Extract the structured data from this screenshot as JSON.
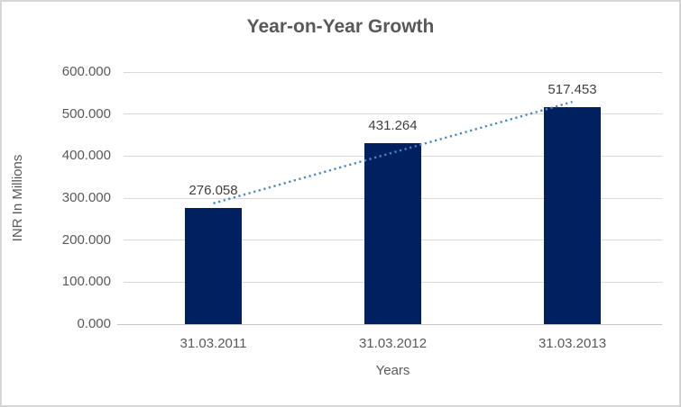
{
  "window": {
    "background": "#FFFFFF",
    "border_color": "#D5D5D5"
  },
  "chart_data": {
    "type": "bar",
    "title": "Year-on-Year Growth",
    "categories": [
      "31.03.2011",
      "31.03.2012",
      "31.03.2013"
    ],
    "values": [
      276.058,
      431.264,
      517.453
    ],
    "data_labels": [
      "276.058",
      "431.264",
      "517.453"
    ],
    "xlabel": "Years",
    "ylabel": "INR In Millions",
    "ylim": [
      0,
      600
    ],
    "ytick_step": 100,
    "ytick_labels": [
      "0.000",
      "100.000",
      "200.000",
      "300.000",
      "400.000",
      "500.000",
      "600.000"
    ],
    "grid": true,
    "legend": "none",
    "trendline": {
      "style": "dotted",
      "fit": "linear",
      "color": "#4A85C6"
    },
    "colors": {
      "bar": "#002060",
      "gridline": "#D9D9D9",
      "axis_line": "#C6C6C6",
      "title_text": "#595959",
      "tick_text": "#595959",
      "data_label_text": "#404040"
    }
  }
}
